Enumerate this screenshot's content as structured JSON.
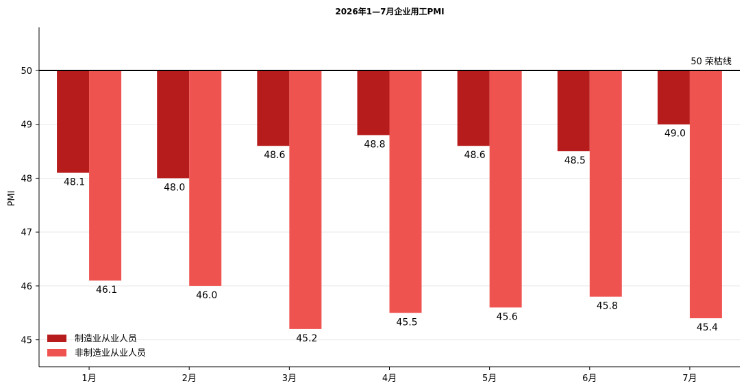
{
  "chart_data": {
    "type": "bar",
    "title": "2026年1—7月企业用工PMI",
    "ylabel": "PMI",
    "xlabel": "",
    "categories": [
      "1月",
      "2月",
      "3月",
      "4月",
      "5月",
      "6月",
      "7月"
    ],
    "series": [
      {
        "name": "制造业从业人员",
        "values": [
          48.1,
          48.0,
          48.6,
          48.8,
          48.6,
          48.5,
          49.0
        ],
        "color": "#b71c1c"
      },
      {
        "name": "非制造业从业人员",
        "values": [
          46.1,
          46.0,
          45.2,
          45.5,
          45.6,
          45.8,
          45.4
        ],
        "color": "#ef5350"
      }
    ],
    "value_labels": {
      "s0": [
        "48.1",
        "48.0",
        "48.6",
        "48.8",
        "48.6",
        "48.5",
        "49.0"
      ],
      "s1": [
        "46.1",
        "46.0",
        "45.2",
        "45.5",
        "45.6",
        "45.8",
        "45.4"
      ]
    },
    "bar_baseline": 50,
    "ylim": [
      44.5,
      50.8
    ],
    "yticks": [
      "45",
      "46",
      "47",
      "48",
      "49",
      "50"
    ],
    "grid": "horizontal",
    "legend_position": "bottom-left",
    "reference_line": {
      "value": 50,
      "label": "50 荣枯线",
      "color": "#000000"
    }
  }
}
